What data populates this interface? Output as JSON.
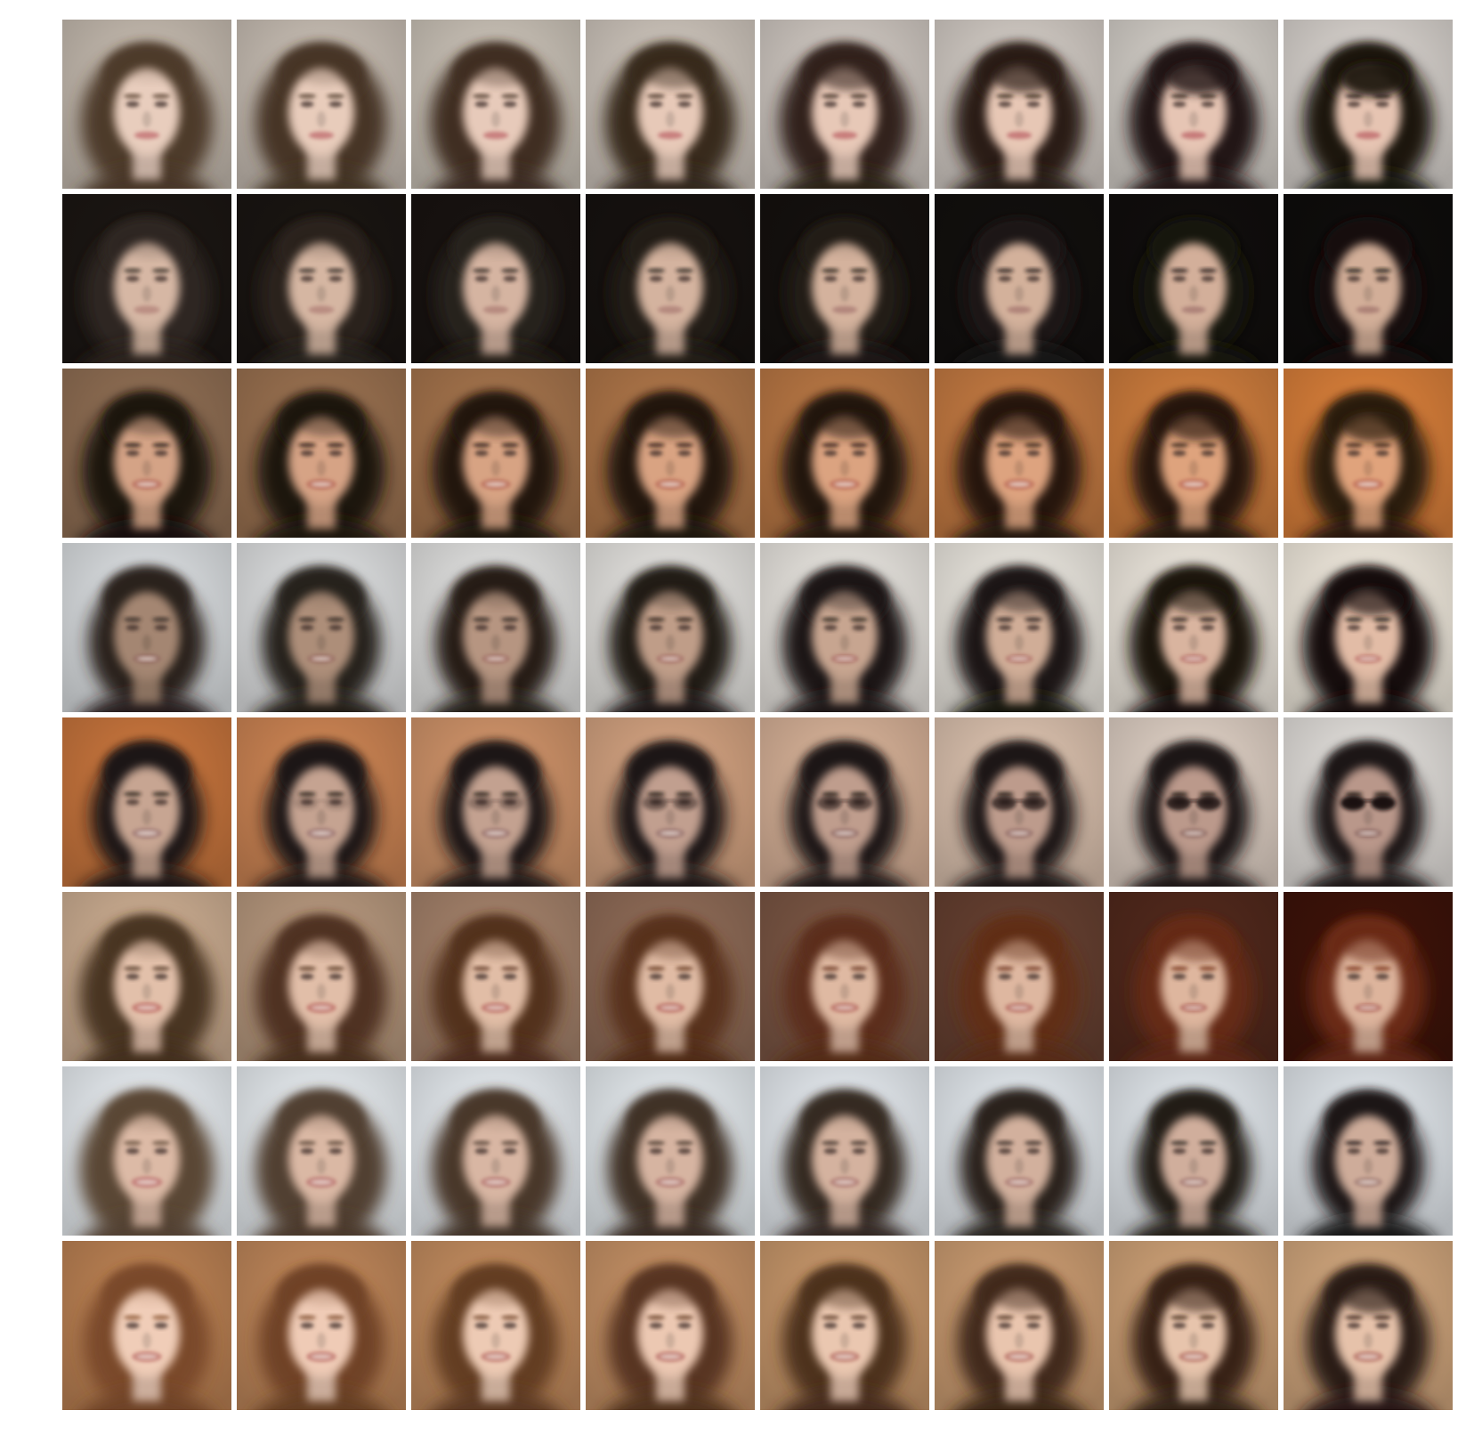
{
  "figure": {
    "rows": 8,
    "cols": 8,
    "row_endpoints": [
      {
        "start": {
          "bg": "#bdb3a8",
          "hair": "#4e3a2a",
          "skin": "#e8cdbd",
          "hair_size": 0.62,
          "bangs": 0.1,
          "glasses": 0,
          "smile": 0.35,
          "lips": "#c67a7a"
        },
        "end": {
          "bg": "#cfcac5",
          "hair": "#1c1410",
          "skin": "#e6c4b2",
          "hair_size": 0.58,
          "bangs": 0.85,
          "glasses": 0,
          "smile": 0.35,
          "lips": "#c27272"
        }
      },
      {
        "start": {
          "bg": "#1a1512",
          "hair": "#2e2620",
          "skin": "#d6b7a4",
          "hair_size": 0.55,
          "bangs": 0.15,
          "glasses": 0,
          "smile": 0.45,
          "lips": "#b88a80"
        },
        "end": {
          "bg": "#0e0c0b",
          "hair": "#15110f",
          "skin": "#d2ae98",
          "hair_size": 0.3,
          "bangs": 0.0,
          "glasses": 0,
          "smile": 0.25,
          "lips": "#a77b72"
        }
      },
      {
        "start": {
          "bg": "#8a6a50",
          "hair": "#1c130e",
          "skin": "#d4a386",
          "hair_size": 0.58,
          "bangs": 0.3,
          "glasses": 0,
          "smile": 0.8,
          "lips": "#b86e5e"
        },
        "end": {
          "bg": "#d07a38",
          "hair": "#2a1a10",
          "skin": "#e0a37c",
          "hair_size": 0.5,
          "bangs": 0.65,
          "glasses": 0,
          "smile": 0.9,
          "lips": "#c0705a"
        }
      },
      {
        "start": {
          "bg": "#d2d5d8",
          "hair": "#2a221d",
          "skin": "#a48672",
          "hair_size": 0.42,
          "bangs": 0.0,
          "glasses": 0,
          "smile": 0.65,
          "lips": "#936b62"
        },
        "end": {
          "bg": "#e8e1d6",
          "hair": "#17110d",
          "skin": "#e2bca6",
          "hair_size": 0.6,
          "bangs": 0.6,
          "glasses": 0,
          "smile": 0.55,
          "lips": "#c07870"
        }
      },
      {
        "start": {
          "bg": "#c0703a",
          "hair": "#1f1814",
          "skin": "#c7a592",
          "hair_size": 0.35,
          "bangs": 0.0,
          "glasses": 0,
          "smile": 0.8,
          "lips": "#a07a76"
        },
        "end": {
          "bg": "#d9d6d2",
          "hair": "#1e1815",
          "skin": "#b9978a",
          "hair_size": 0.35,
          "bangs": 0.0,
          "glasses": 1,
          "smile": 0.6,
          "lips": "#8f6c66"
        }
      },
      {
        "start": {
          "bg": "#c4a78c",
          "hair": "#4a3422",
          "skin": "#e2c0aa",
          "hair_size": 0.65,
          "bangs": 0.2,
          "glasses": 0,
          "smile": 0.8,
          "lips": "#c07068"
        },
        "end": {
          "bg": "#3a1208",
          "hair": "#6a2a14",
          "skin": "#ddb49c",
          "hair_size": 0.4,
          "bangs": 0.5,
          "glasses": 0,
          "smile": 0.55,
          "lips": "#b26a60"
        }
      },
      {
        "start": {
          "bg": "#dfe4e8",
          "hair": "#5a4636",
          "skin": "#dcbaa6",
          "hair_size": 0.66,
          "bangs": 0.15,
          "glasses": 0,
          "smile": 0.9,
          "lips": "#c07874"
        },
        "end": {
          "bg": "#d8dde2",
          "hair": "#1a1614",
          "skin": "#ceac9a",
          "hair_size": 0.36,
          "bangs": 0.0,
          "glasses": 0,
          "smile": 0.65,
          "lips": "#a27e76"
        }
      },
      {
        "start": {
          "bg": "#b47c50",
          "hair": "#7a4a2a",
          "skin": "#f0cdb8",
          "hair_size": 0.55,
          "bangs": 0.1,
          "glasses": 0,
          "smile": 0.8,
          "lips": "#c27a72"
        },
        "end": {
          "bg": "#c9a078",
          "hair": "#2c1c14",
          "skin": "#e6c2aa",
          "hair_size": 0.5,
          "bangs": 0.6,
          "glasses": 0,
          "smile": 0.8,
          "lips": "#b8766a"
        }
      }
    ]
  }
}
